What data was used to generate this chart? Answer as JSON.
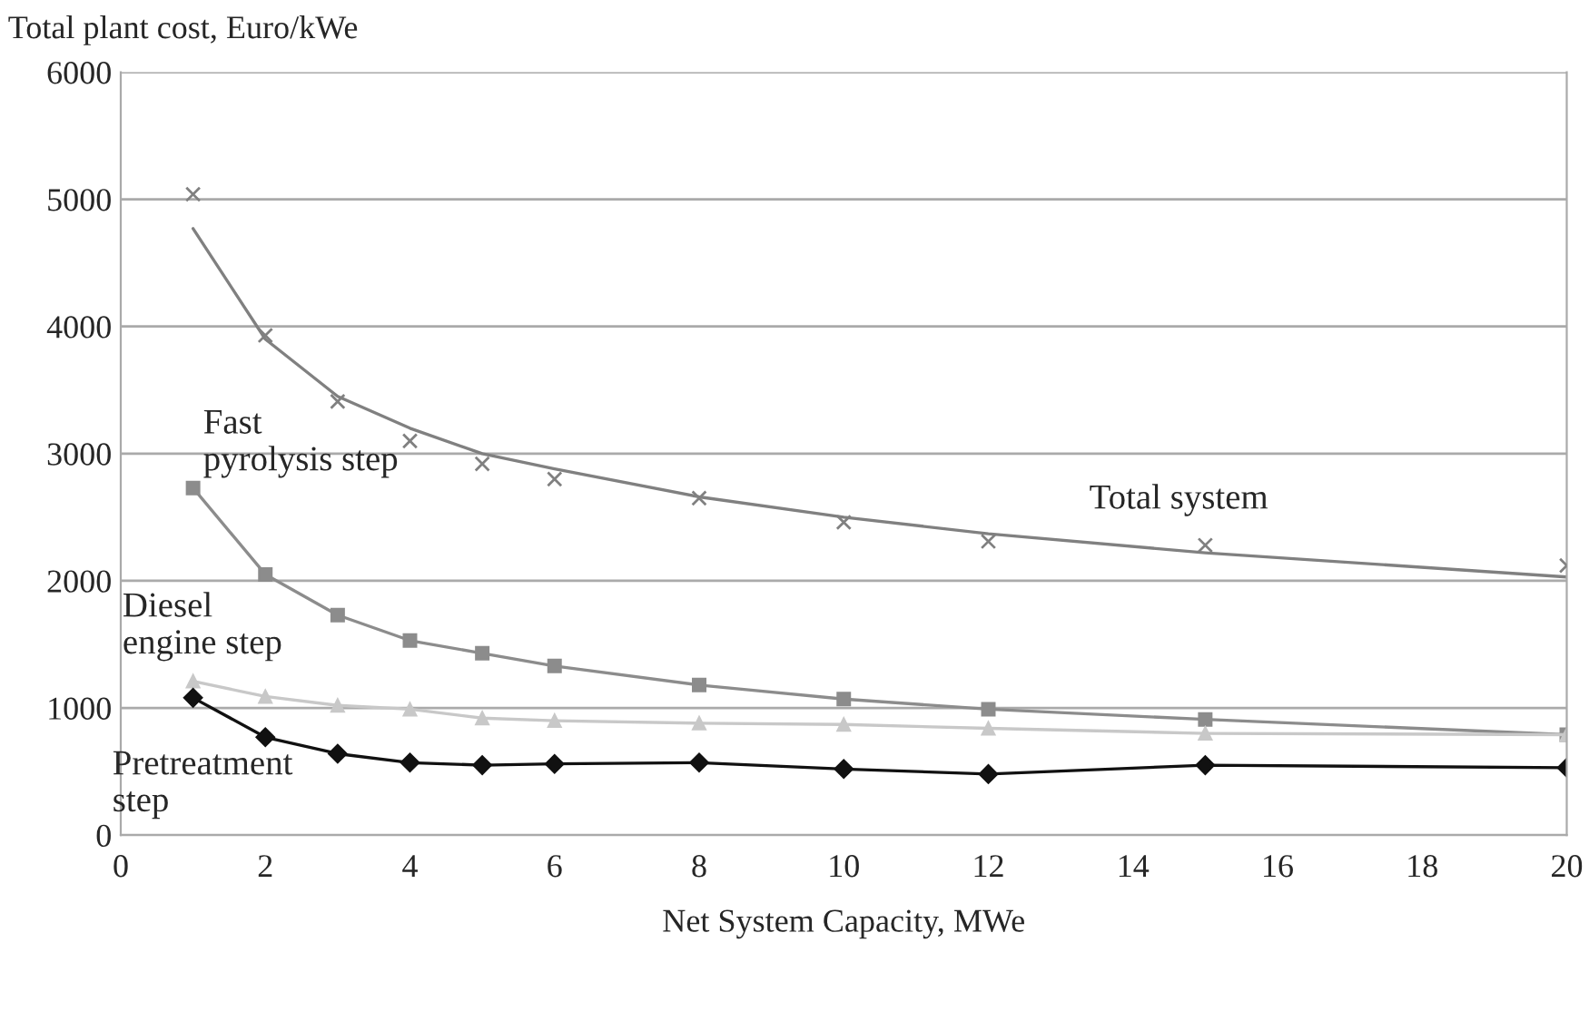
{
  "chart_data": {
    "type": "line",
    "ylabel": "Total plant cost, Euro/kWe",
    "xlabel": "Net System Capacity, MWe",
    "x": [
      1,
      2,
      3,
      4,
      5,
      6,
      8,
      10,
      12,
      15,
      20
    ],
    "series": [
      {
        "name": "Total system",
        "type": "scatter",
        "marker": "cross",
        "color": "#808080",
        "values": [
          5040,
          3930,
          3410,
          3100,
          2920,
          2800,
          2650,
          2460,
          2310,
          2280,
          2120
        ]
      },
      {
        "type": "line",
        "marker": "none",
        "color": "#808080",
        "values": [
          4770,
          3900,
          3450,
          3200,
          3000,
          2880,
          2660,
          2500,
          2370,
          2220,
          2030
        ]
      },
      {
        "name": "Fast\npyrolysis step",
        "marker": "square",
        "color": "#8c8c8c",
        "values": [
          2730,
          2050,
          1730,
          1530,
          1430,
          1330,
          1180,
          1070,
          990,
          910,
          790
        ]
      },
      {
        "name": "Diesel\nengine step",
        "marker": "triangle",
        "color": "#c8c8c8",
        "values": [
          1210,
          1090,
          1020,
          990,
          920,
          900,
          880,
          870,
          840,
          800,
          790
        ]
      },
      {
        "name": "Pretreatment\nstep",
        "marker": "diamond",
        "color": "#111111",
        "values": [
          1080,
          770,
          640,
          570,
          550,
          560,
          570,
          520,
          480,
          550,
          530
        ]
      }
    ],
    "xlim": [
      0,
      20
    ],
    "xticks": [
      0,
      2,
      4,
      6,
      8,
      10,
      12,
      14,
      16,
      18,
      20
    ],
    "ylim": [
      0,
      6000
    ],
    "yticks": [
      0,
      1000,
      2000,
      3000,
      4000,
      5000,
      6000
    ],
    "grid": "y",
    "legend": false
  }
}
